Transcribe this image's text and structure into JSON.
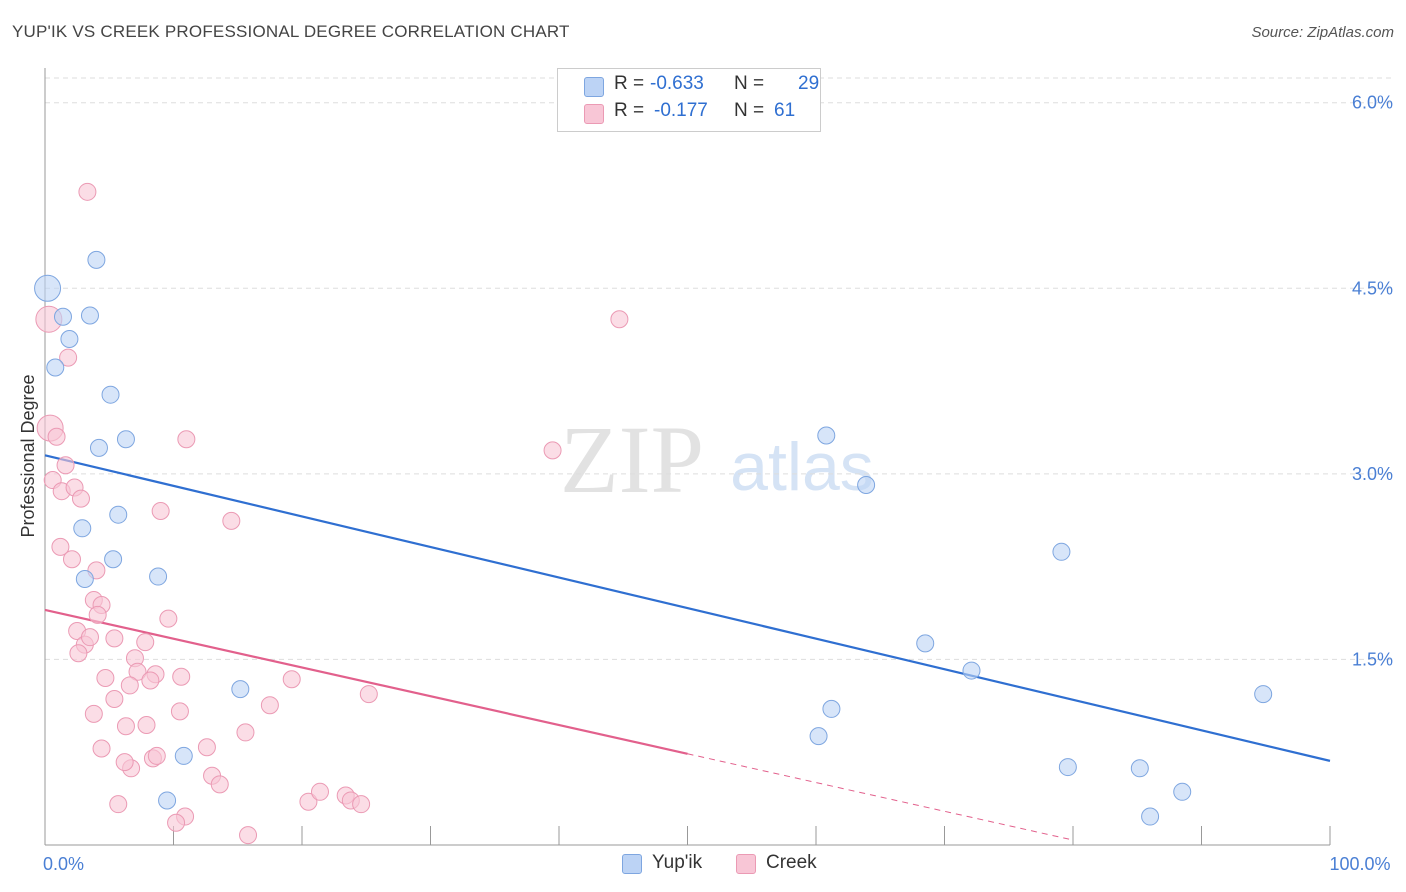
{
  "header": {
    "title": "YUP'IK VS CREEK PROFESSIONAL DEGREE CORRELATION CHART",
    "source": "Source: ZipAtlas.com"
  },
  "watermark": {
    "zip": "ZIP",
    "atlas": "atlas"
  },
  "legend": {
    "rows": [
      {
        "r_label": "R =",
        "r_value": "-0.633",
        "n_label": "N =",
        "n_value": "29"
      },
      {
        "r_label": "R =",
        "r_value": "-0.177",
        "n_label": "N =",
        "n_value": "61"
      }
    ],
    "bottom": [
      "Yup'ik",
      "Creek"
    ]
  },
  "colors": {
    "yupik_fill": "#bcd3f5",
    "yupik_stroke": "#7ea6e0",
    "yupik_line": "#2f6fd1",
    "creek_fill": "#f8c6d6",
    "creek_stroke": "#eb9ab4",
    "creek_line": "#e2608c",
    "axis_label": "#4a7fd4",
    "grid": "#dddddd"
  },
  "chart_data": {
    "type": "scatter",
    "title": "YUP'IK VS CREEK PROFESSIONAL DEGREE CORRELATION CHART",
    "xlabel": "",
    "ylabel": "Professional Degree",
    "xlim": [
      0,
      100
    ],
    "ylim": [
      0,
      6.2
    ],
    "x_tick_labels": [
      {
        "value": 0,
        "label": "0.0%"
      },
      {
        "value": 100,
        "label": "100.0%"
      }
    ],
    "y_ticks": [
      {
        "value": 1.5,
        "label": "1.5%"
      },
      {
        "value": 3.0,
        "label": "3.0%"
      },
      {
        "value": 4.5,
        "label": "4.5%"
      },
      {
        "value": 6.0,
        "label": "6.0%"
      }
    ],
    "series": [
      {
        "name": "Yup'ik",
        "r": -0.633,
        "n": 29,
        "trend": {
          "x0": 0,
          "y0": 3.15,
          "x1": 100,
          "y1": 0.68,
          "solid_until": 100
        },
        "points": [
          [
            0.2,
            4.5
          ],
          [
            1.4,
            4.27
          ],
          [
            3.5,
            4.28
          ],
          [
            1.9,
            4.09
          ],
          [
            0.8,
            3.86
          ],
          [
            4.0,
            4.73
          ],
          [
            5.1,
            3.64
          ],
          [
            4.2,
            3.21
          ],
          [
            6.3,
            3.28
          ],
          [
            2.9,
            2.56
          ],
          [
            5.7,
            2.67
          ],
          [
            3.1,
            2.15
          ],
          [
            5.3,
            2.31
          ],
          [
            8.8,
            2.17
          ],
          [
            15.2,
            1.26
          ],
          [
            10.8,
            0.72
          ],
          [
            9.5,
            0.36
          ],
          [
            60.8,
            3.31
          ],
          [
            63.9,
            2.91
          ],
          [
            79.1,
            2.37
          ],
          [
            68.5,
            1.63
          ],
          [
            72.1,
            1.41
          ],
          [
            61.2,
            1.1
          ],
          [
            60.2,
            0.88
          ],
          [
            94.8,
            1.22
          ],
          [
            79.6,
            0.63
          ],
          [
            85.2,
            0.62
          ],
          [
            88.5,
            0.43
          ],
          [
            86.0,
            0.23
          ]
        ]
      },
      {
        "name": "Creek",
        "r": -0.177,
        "n": 61,
        "trend": {
          "x0": 0,
          "y0": 1.9,
          "x1": 80,
          "y1": 0.04,
          "solid_until": 50
        },
        "points": [
          [
            0.3,
            4.25
          ],
          [
            3.3,
            5.28
          ],
          [
            1.8,
            3.94
          ],
          [
            0.4,
            3.37
          ],
          [
            0.9,
            3.3
          ],
          [
            1.6,
            3.07
          ],
          [
            0.6,
            2.95
          ],
          [
            1.3,
            2.86
          ],
          [
            2.3,
            2.89
          ],
          [
            2.8,
            2.8
          ],
          [
            1.2,
            2.41
          ],
          [
            2.1,
            2.31
          ],
          [
            3.8,
            1.98
          ],
          [
            4.4,
            1.94
          ],
          [
            2.5,
            1.73
          ],
          [
            3.1,
            1.62
          ],
          [
            2.6,
            1.55
          ],
          [
            4.1,
            1.86
          ],
          [
            4.0,
            2.22
          ],
          [
            5.4,
            1.67
          ],
          [
            7.0,
            1.51
          ],
          [
            7.2,
            1.4
          ],
          [
            7.8,
            1.64
          ],
          [
            8.6,
            1.38
          ],
          [
            8.2,
            1.33
          ],
          [
            9.6,
            1.83
          ],
          [
            10.6,
            1.36
          ],
          [
            11.0,
            3.28
          ],
          [
            9.0,
            2.7
          ],
          [
            4.7,
            1.35
          ],
          [
            5.4,
            1.18
          ],
          [
            6.6,
            1.29
          ],
          [
            3.8,
            1.06
          ],
          [
            4.4,
            0.78
          ],
          [
            6.3,
            0.96
          ],
          [
            7.9,
            0.97
          ],
          [
            6.7,
            0.62
          ],
          [
            6.2,
            0.67
          ],
          [
            8.4,
            0.7
          ],
          [
            8.7,
            0.72
          ],
          [
            10.5,
            1.08
          ],
          [
            12.6,
            0.79
          ],
          [
            13.0,
            0.56
          ],
          [
            13.6,
            0.49
          ],
          [
            15.6,
            0.91
          ],
          [
            17.5,
            1.13
          ],
          [
            19.2,
            1.34
          ],
          [
            20.5,
            0.35
          ],
          [
            21.4,
            0.43
          ],
          [
            23.4,
            0.4
          ],
          [
            23.8,
            0.36
          ],
          [
            24.6,
            0.33
          ],
          [
            25.2,
            1.22
          ],
          [
            14.5,
            2.62
          ],
          [
            10.9,
            0.23
          ],
          [
            10.2,
            0.18
          ],
          [
            15.8,
            0.08
          ],
          [
            5.7,
            0.33
          ],
          [
            44.7,
            4.25
          ],
          [
            39.5,
            3.19
          ],
          [
            3.5,
            1.68
          ]
        ]
      }
    ]
  }
}
